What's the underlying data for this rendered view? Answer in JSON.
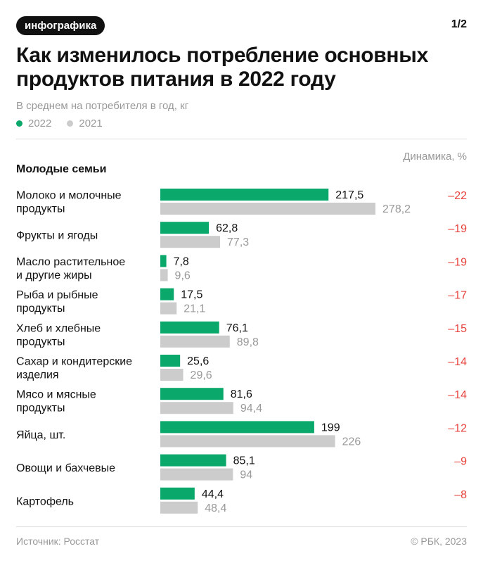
{
  "header": {
    "tag": "инфографика",
    "pager": "1/2",
    "title": "Как изменилось потребление основных продуктов питания в 2022 году",
    "subtitle": "В среднем на потребителя в год, кг",
    "legend": [
      {
        "label": "2022",
        "color": "#0aa86a"
      },
      {
        "label": "2021",
        "color": "#cccccc"
      }
    ],
    "dynamics_label": "Динамика, %",
    "section": "Молодые семьи"
  },
  "chart_data": {
    "type": "bar",
    "orientation": "horizontal",
    "categories": [
      [
        "Молоко и молочные",
        "продукты"
      ],
      [
        "Фрукты и ягоды"
      ],
      [
        "Масло растительное",
        "и другие жиры"
      ],
      [
        "Рыба и рыбные",
        "продукты"
      ],
      [
        "Хлеб и хлебные",
        "продукты"
      ],
      [
        "Сахар и кондитерские",
        "изделия"
      ],
      [
        "Мясо и мясные",
        "продукты"
      ],
      [
        "Яйца, шт."
      ],
      [
        "Овощи и бахчевые"
      ],
      [
        "Картофель"
      ]
    ],
    "series": [
      {
        "name": "2022",
        "color": "#0aa86a",
        "values": [
          217.5,
          62.8,
          7.8,
          17.5,
          76.1,
          25.6,
          81.6,
          199,
          85.1,
          44.4
        ],
        "labels": [
          "217,5",
          "62,8",
          "7,8",
          "17,5",
          "76,1",
          "25,6",
          "81,6",
          "199",
          "85,1",
          "44,4"
        ]
      },
      {
        "name": "2021",
        "color": "#cccccc",
        "values": [
          278.2,
          77.3,
          9.6,
          21.1,
          89.8,
          29.6,
          94.4,
          226,
          94,
          48.4
        ],
        "labels": [
          "278,2",
          "77,3",
          "9,6",
          "21,1",
          "89,8",
          "29,6",
          "94,4",
          "226",
          "94",
          "48,4"
        ]
      }
    ],
    "dynamics": [
      "–22",
      "–19",
      "–19",
      "–17",
      "–15",
      "–14",
      "–14",
      "–12",
      "–9",
      "–8"
    ],
    "dynamics_color": "#e8413c"
  },
  "footer": {
    "source": "Источник: Росстат",
    "copyright": "© РБК, 2023"
  }
}
